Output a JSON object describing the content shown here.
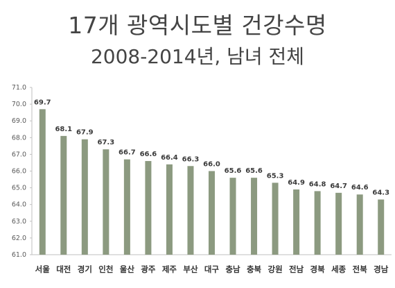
{
  "title_line1": "17개 광역시도별 건강수명",
  "title_line2": "2008-2014년, 남녀 전체",
  "chart_data": {
    "type": "bar",
    "title": "17개 광역시도별 건강수명",
    "subtitle": "2008-2014년, 남녀 전체",
    "categories": [
      "서울",
      "대전",
      "경기",
      "인천",
      "울산",
      "광주",
      "제주",
      "부산",
      "대구",
      "충남",
      "충북",
      "강원",
      "전남",
      "경북",
      "세종",
      "전북",
      "경남"
    ],
    "values": [
      69.7,
      68.1,
      67.9,
      67.3,
      66.7,
      66.6,
      66.4,
      66.3,
      66.0,
      65.6,
      65.6,
      65.3,
      64.9,
      64.8,
      64.7,
      64.6,
      64.3
    ],
    "ylim": [
      61.0,
      71.0
    ],
    "yticks": [
      "61.0",
      "62.0",
      "63.0",
      "64.0",
      "65.0",
      "66.0",
      "67.0",
      "68.0",
      "69.0",
      "70.0",
      "71.0"
    ],
    "xlabel": "",
    "ylabel": "",
    "grid": false,
    "bar_color": "#8c9a80",
    "axis_color": "#bfbfbf"
  }
}
